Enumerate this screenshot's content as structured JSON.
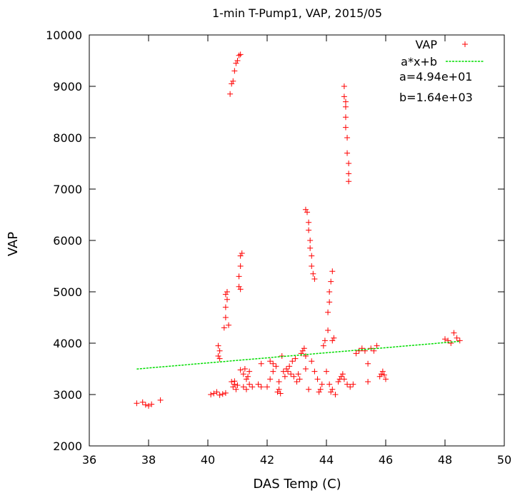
{
  "chart_data": {
    "type": "scatter",
    "title": "1-min T-Pump1, VAP, 2015/05",
    "xlabel": "DAS Temp (C)",
    "ylabel": "VAP",
    "xlim": [
      36,
      50
    ],
    "ylim": [
      2000,
      10000
    ],
    "xticks": [
      "36",
      "38",
      "40",
      "42",
      "44",
      "46",
      "48",
      "50"
    ],
    "yticks": [
      "2000",
      "3000",
      "4000",
      "5000",
      "6000",
      "7000",
      "8000",
      "9000",
      "10000"
    ],
    "grid": false,
    "legend_position": "top-right",
    "series": [
      {
        "name": "VAP",
        "marker": "+",
        "color": "#ff0000",
        "points": [
          [
            37.6,
            2830
          ],
          [
            37.8,
            2850
          ],
          [
            37.9,
            2800
          ],
          [
            38.0,
            2780
          ],
          [
            38.1,
            2810
          ],
          [
            38.4,
            2890
          ],
          [
            40.1,
            3000
          ],
          [
            40.2,
            3020
          ],
          [
            40.3,
            3050
          ],
          [
            40.4,
            2990
          ],
          [
            40.5,
            3010
          ],
          [
            40.6,
            3030
          ],
          [
            40.35,
            3750
          ],
          [
            40.35,
            3950
          ],
          [
            40.4,
            3700
          ],
          [
            40.4,
            3850
          ],
          [
            40.55,
            4300
          ],
          [
            40.6,
            4500
          ],
          [
            40.6,
            4700
          ],
          [
            40.65,
            4850
          ],
          [
            40.65,
            5000
          ],
          [
            40.7,
            4350
          ],
          [
            40.6,
            4950
          ],
          [
            40.8,
            3250
          ],
          [
            40.85,
            3150
          ],
          [
            40.9,
            3200
          ],
          [
            40.95,
            3100
          ],
          [
            41.0,
            3180
          ],
          [
            40.9,
            3260
          ],
          [
            41.05,
            5100
          ],
          [
            41.05,
            5300
          ],
          [
            41.1,
            5500
          ],
          [
            41.1,
            5700
          ],
          [
            41.1,
            5050
          ],
          [
            41.15,
            5750
          ],
          [
            40.75,
            8850
          ],
          [
            40.8,
            9050
          ],
          [
            40.85,
            9100
          ],
          [
            40.9,
            9300
          ],
          [
            40.95,
            9450
          ],
          [
            41.0,
            9500
          ],
          [
            41.05,
            9600
          ],
          [
            41.1,
            9620
          ],
          [
            41.2,
            3400
          ],
          [
            41.25,
            3500
          ],
          [
            41.3,
            3300
          ],
          [
            41.35,
            3350
          ],
          [
            41.4,
            3450
          ],
          [
            41.1,
            3480
          ],
          [
            41.2,
            3150
          ],
          [
            41.3,
            3100
          ],
          [
            41.4,
            3200
          ],
          [
            41.5,
            3150
          ],
          [
            41.7,
            3200
          ],
          [
            41.8,
            3150
          ],
          [
            41.8,
            3600
          ],
          [
            42.0,
            3150
          ],
          [
            42.1,
            3300
          ],
          [
            42.1,
            3650
          ],
          [
            42.2,
            3600
          ],
          [
            42.3,
            3550
          ],
          [
            42.2,
            3450
          ],
          [
            42.35,
            3050
          ],
          [
            42.4,
            3100
          ],
          [
            42.45,
            3020
          ],
          [
            42.4,
            3250
          ],
          [
            42.5,
            3750
          ],
          [
            42.55,
            3450
          ],
          [
            42.6,
            3350
          ],
          [
            42.65,
            3500
          ],
          [
            42.7,
            3450
          ],
          [
            42.75,
            3550
          ],
          [
            42.8,
            3400
          ],
          [
            42.85,
            3650
          ],
          [
            42.9,
            3350
          ],
          [
            42.95,
            3700
          ],
          [
            43.0,
            3250
          ],
          [
            43.05,
            3400
          ],
          [
            43.1,
            3300
          ],
          [
            43.15,
            3800
          ],
          [
            43.2,
            3850
          ],
          [
            43.25,
            3900
          ],
          [
            43.3,
            3750
          ],
          [
            43.3,
            3500
          ],
          [
            43.4,
            3100
          ],
          [
            43.5,
            3650
          ],
          [
            43.6,
            3450
          ],
          [
            43.7,
            3300
          ],
          [
            43.75,
            3050
          ],
          [
            43.8,
            3100
          ],
          [
            43.85,
            3200
          ],
          [
            43.9,
            3950
          ],
          [
            43.95,
            4050
          ],
          [
            44.0,
            3450
          ],
          [
            44.1,
            3200
          ],
          [
            44.15,
            3050
          ],
          [
            44.2,
            3100
          ],
          [
            44.2,
            4050
          ],
          [
            44.25,
            4100
          ],
          [
            44.3,
            3000
          ],
          [
            44.4,
            3250
          ],
          [
            44.45,
            3300
          ],
          [
            44.5,
            3350
          ],
          [
            44.55,
            3400
          ],
          [
            44.6,
            3300
          ],
          [
            44.7,
            3200
          ],
          [
            44.8,
            3150
          ],
          [
            44.9,
            3200
          ],
          [
            43.3,
            6600
          ],
          [
            43.35,
            6550
          ],
          [
            43.4,
            6350
          ],
          [
            43.4,
            6200
          ],
          [
            43.45,
            6000
          ],
          [
            43.45,
            5850
          ],
          [
            43.5,
            5700
          ],
          [
            43.5,
            5500
          ],
          [
            43.55,
            5350
          ],
          [
            43.6,
            5250
          ],
          [
            44.05,
            4250
          ],
          [
            44.05,
            4600
          ],
          [
            44.1,
            4800
          ],
          [
            44.1,
            5000
          ],
          [
            44.15,
            5200
          ],
          [
            44.2,
            5400
          ],
          [
            44.6,
            9000
          ],
          [
            44.6,
            8800
          ],
          [
            44.65,
            8700
          ],
          [
            44.65,
            8600
          ],
          [
            44.65,
            8400
          ],
          [
            44.65,
            8200
          ],
          [
            44.7,
            8000
          ],
          [
            44.7,
            7700
          ],
          [
            44.75,
            7500
          ],
          [
            44.75,
            7300
          ],
          [
            44.75,
            7150
          ],
          [
            45.0,
            3800
          ],
          [
            45.1,
            3850
          ],
          [
            45.2,
            3900
          ],
          [
            45.3,
            3850
          ],
          [
            45.4,
            3600
          ],
          [
            45.4,
            3250
          ],
          [
            45.5,
            3900
          ],
          [
            45.6,
            3850
          ],
          [
            45.7,
            3950
          ],
          [
            45.8,
            3350
          ],
          [
            45.85,
            3400
          ],
          [
            45.9,
            3450
          ],
          [
            45.95,
            3380
          ],
          [
            46.0,
            3300
          ],
          [
            48.0,
            4080
          ],
          [
            48.1,
            4050
          ],
          [
            48.2,
            4000
          ],
          [
            48.3,
            4200
          ],
          [
            48.4,
            4100
          ],
          [
            48.5,
            4050
          ]
        ]
      },
      {
        "name": "a*x+b",
        "color": "#00dd00",
        "kind": "fit-line",
        "x": [
          37.6,
          48.5
        ],
        "y": [
          3497,
          4036
        ]
      }
    ],
    "annotations": [
      "a=4.94e+01",
      "b=1.64e+03"
    ]
  }
}
